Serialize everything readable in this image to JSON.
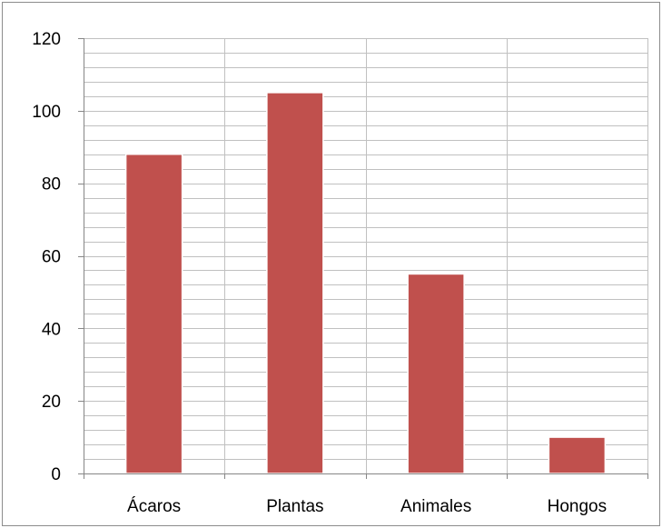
{
  "chart_data": {
    "type": "bar",
    "categories": [
      "Ácaros",
      "Plantas",
      "Animales",
      "Hongos"
    ],
    "values": [
      88,
      105,
      55,
      10
    ],
    "title": "",
    "xlabel": "",
    "ylabel": "",
    "ylim": [
      0,
      120
    ],
    "yticks": [
      "0",
      "20",
      "40",
      "60",
      "80",
      "100",
      "120"
    ],
    "grid": true,
    "minor_grid_step": 4,
    "legend": "none",
    "bar_color": "#c0504d",
    "grid_color": "#c0c0c0"
  }
}
